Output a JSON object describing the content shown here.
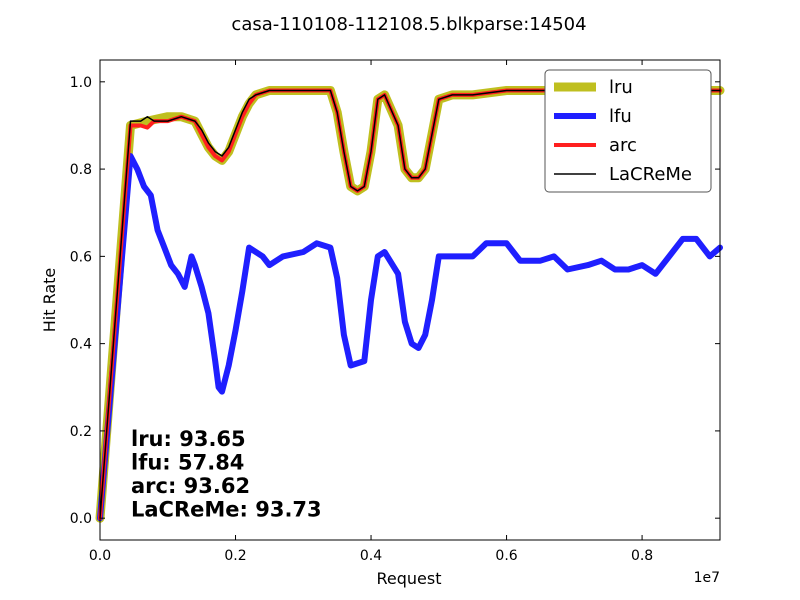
{
  "chart_data": {
    "type": "line",
    "title": "casa-110108-112108.5.blkparse:14504",
    "xlabel": "Request",
    "ylabel": "Hit Rate",
    "x_offset_text": "1e7",
    "xlim": [
      0,
      0.915
    ],
    "ylim": [
      -0.05,
      1.05
    ],
    "x_scale_note": "x values shown in units of 1e7",
    "xticks": [
      0.0,
      0.2,
      0.4,
      0.6,
      0.8
    ],
    "xtick_labels": [
      "0.0",
      "0.2",
      "0.4",
      "0.6",
      "0.8"
    ],
    "yticks": [
      0.0,
      0.2,
      0.4,
      0.6,
      0.8,
      1.0
    ],
    "ytick_labels": [
      "0.0",
      "0.2",
      "0.4",
      "0.6",
      "0.8",
      "1.0"
    ],
    "grid": false,
    "legend_position": "top-right",
    "series": [
      {
        "name": "lru",
        "color": "#bfbf1f",
        "points": [
          [
            0.0,
            0.0
          ],
          [
            0.045,
            0.9
          ],
          [
            0.07,
            0.91
          ],
          [
            0.1,
            0.92
          ],
          [
            0.12,
            0.92
          ],
          [
            0.14,
            0.91
          ],
          [
            0.15,
            0.88
          ],
          [
            0.16,
            0.85
          ],
          [
            0.17,
            0.83
          ],
          [
            0.18,
            0.82
          ],
          [
            0.19,
            0.84
          ],
          [
            0.2,
            0.88
          ],
          [
            0.21,
            0.92
          ],
          [
            0.22,
            0.95
          ],
          [
            0.23,
            0.97
          ],
          [
            0.25,
            0.98
          ],
          [
            0.3,
            0.98
          ],
          [
            0.34,
            0.98
          ],
          [
            0.35,
            0.93
          ],
          [
            0.36,
            0.84
          ],
          [
            0.37,
            0.76
          ],
          [
            0.38,
            0.75
          ],
          [
            0.39,
            0.76
          ],
          [
            0.4,
            0.84
          ],
          [
            0.41,
            0.96
          ],
          [
            0.42,
            0.97
          ],
          [
            0.44,
            0.9
          ],
          [
            0.45,
            0.8
          ],
          [
            0.46,
            0.78
          ],
          [
            0.47,
            0.78
          ],
          [
            0.48,
            0.8
          ],
          [
            0.49,
            0.88
          ],
          [
            0.5,
            0.96
          ],
          [
            0.52,
            0.97
          ],
          [
            0.55,
            0.97
          ],
          [
            0.6,
            0.98
          ],
          [
            0.7,
            0.98
          ],
          [
            0.8,
            0.98
          ],
          [
            0.915,
            0.98
          ]
        ]
      },
      {
        "name": "lfu",
        "color": "#1f1fff",
        "points": [
          [
            0.0,
            0.0
          ],
          [
            0.045,
            0.83
          ],
          [
            0.055,
            0.8
          ],
          [
            0.065,
            0.76
          ],
          [
            0.075,
            0.74
          ],
          [
            0.085,
            0.66
          ],
          [
            0.095,
            0.62
          ],
          [
            0.105,
            0.58
          ],
          [
            0.115,
            0.56
          ],
          [
            0.125,
            0.53
          ],
          [
            0.135,
            0.6
          ],
          [
            0.14,
            0.58
          ],
          [
            0.15,
            0.53
          ],
          [
            0.16,
            0.47
          ],
          [
            0.17,
            0.36
          ],
          [
            0.175,
            0.3
          ],
          [
            0.18,
            0.29
          ],
          [
            0.19,
            0.35
          ],
          [
            0.2,
            0.43
          ],
          [
            0.21,
            0.52
          ],
          [
            0.22,
            0.62
          ],
          [
            0.24,
            0.6
          ],
          [
            0.25,
            0.58
          ],
          [
            0.27,
            0.6
          ],
          [
            0.3,
            0.61
          ],
          [
            0.32,
            0.63
          ],
          [
            0.34,
            0.62
          ],
          [
            0.35,
            0.55
          ],
          [
            0.36,
            0.42
          ],
          [
            0.37,
            0.35
          ],
          [
            0.39,
            0.36
          ],
          [
            0.4,
            0.5
          ],
          [
            0.41,
            0.6
          ],
          [
            0.42,
            0.61
          ],
          [
            0.44,
            0.56
          ],
          [
            0.45,
            0.45
          ],
          [
            0.46,
            0.4
          ],
          [
            0.47,
            0.39
          ],
          [
            0.48,
            0.42
          ],
          [
            0.49,
            0.5
          ],
          [
            0.5,
            0.6
          ],
          [
            0.52,
            0.6
          ],
          [
            0.55,
            0.6
          ],
          [
            0.57,
            0.63
          ],
          [
            0.6,
            0.63
          ],
          [
            0.62,
            0.59
          ],
          [
            0.65,
            0.59
          ],
          [
            0.67,
            0.6
          ],
          [
            0.69,
            0.57
          ],
          [
            0.72,
            0.58
          ],
          [
            0.74,
            0.59
          ],
          [
            0.76,
            0.57
          ],
          [
            0.78,
            0.57
          ],
          [
            0.8,
            0.58
          ],
          [
            0.82,
            0.56
          ],
          [
            0.84,
            0.6
          ],
          [
            0.86,
            0.64
          ],
          [
            0.88,
            0.64
          ],
          [
            0.9,
            0.6
          ],
          [
            0.915,
            0.62
          ]
        ]
      },
      {
        "name": "arc",
        "color": "#ff1f1f",
        "points": [
          [
            0.0,
            0.0
          ],
          [
            0.045,
            0.9
          ],
          [
            0.06,
            0.9
          ],
          [
            0.07,
            0.895
          ],
          [
            0.08,
            0.91
          ],
          [
            0.1,
            0.91
          ],
          [
            0.12,
            0.92
          ],
          [
            0.14,
            0.91
          ],
          [
            0.15,
            0.88
          ],
          [
            0.16,
            0.85
          ],
          [
            0.17,
            0.83
          ],
          [
            0.18,
            0.82
          ],
          [
            0.19,
            0.84
          ],
          [
            0.2,
            0.88
          ],
          [
            0.21,
            0.92
          ],
          [
            0.22,
            0.95
          ],
          [
            0.23,
            0.97
          ],
          [
            0.25,
            0.98
          ],
          [
            0.3,
            0.98
          ],
          [
            0.34,
            0.98
          ],
          [
            0.35,
            0.93
          ],
          [
            0.36,
            0.84
          ],
          [
            0.37,
            0.76
          ],
          [
            0.38,
            0.75
          ],
          [
            0.39,
            0.76
          ],
          [
            0.4,
            0.84
          ],
          [
            0.41,
            0.96
          ],
          [
            0.42,
            0.97
          ],
          [
            0.44,
            0.9
          ],
          [
            0.45,
            0.8
          ],
          [
            0.46,
            0.78
          ],
          [
            0.47,
            0.78
          ],
          [
            0.48,
            0.8
          ],
          [
            0.49,
            0.88
          ],
          [
            0.5,
            0.96
          ],
          [
            0.52,
            0.97
          ],
          [
            0.55,
            0.97
          ],
          [
            0.6,
            0.98
          ],
          [
            0.7,
            0.98
          ],
          [
            0.8,
            0.98
          ],
          [
            0.915,
            0.98
          ]
        ]
      },
      {
        "name": "LaCReMe",
        "color": "#000000",
        "points": [
          [
            0.0,
            0.0
          ],
          [
            0.045,
            0.91
          ],
          [
            0.06,
            0.91
          ],
          [
            0.07,
            0.92
          ],
          [
            0.08,
            0.91
          ],
          [
            0.1,
            0.91
          ],
          [
            0.12,
            0.92
          ],
          [
            0.14,
            0.91
          ],
          [
            0.15,
            0.89
          ],
          [
            0.16,
            0.86
          ],
          [
            0.17,
            0.84
          ],
          [
            0.18,
            0.83
          ],
          [
            0.19,
            0.85
          ],
          [
            0.2,
            0.89
          ],
          [
            0.21,
            0.93
          ],
          [
            0.22,
            0.96
          ],
          [
            0.23,
            0.97
          ],
          [
            0.25,
            0.98
          ],
          [
            0.3,
            0.98
          ],
          [
            0.34,
            0.98
          ],
          [
            0.35,
            0.93
          ],
          [
            0.36,
            0.84
          ],
          [
            0.37,
            0.76
          ],
          [
            0.38,
            0.75
          ],
          [
            0.39,
            0.76
          ],
          [
            0.4,
            0.84
          ],
          [
            0.41,
            0.96
          ],
          [
            0.42,
            0.97
          ],
          [
            0.44,
            0.9
          ],
          [
            0.45,
            0.8
          ],
          [
            0.46,
            0.78
          ],
          [
            0.47,
            0.78
          ],
          [
            0.48,
            0.8
          ],
          [
            0.49,
            0.88
          ],
          [
            0.5,
            0.96
          ],
          [
            0.52,
            0.97
          ],
          [
            0.55,
            0.97
          ],
          [
            0.6,
            0.98
          ],
          [
            0.7,
            0.98
          ],
          [
            0.8,
            0.98
          ],
          [
            0.915,
            0.98
          ]
        ]
      }
    ],
    "annotations": [
      "lru:  93.65",
      "lfu:  57.84",
      "arc:  93.62",
      "LaCReMe:  93.73"
    ]
  }
}
